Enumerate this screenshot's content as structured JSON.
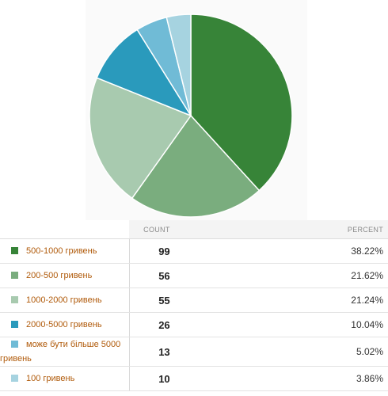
{
  "table": {
    "count_header": "COUNT",
    "percent_header": "PERCENT"
  },
  "chart_data": {
    "type": "pie",
    "categories": [
      "500-1000 гривень",
      "200-500 гривень",
      "1000-2000 гривень",
      "2000-5000 гривень",
      "може бути більше 5000 гривень",
      "100 гривень"
    ],
    "values": [
      99,
      56,
      55,
      26,
      13,
      10
    ],
    "percents": [
      "38.22%",
      "21.62%",
      "21.24%",
      "10.04%",
      "5.02%",
      "3.86%"
    ],
    "colors": [
      "#378438",
      "#7aad7e",
      "#a8caaf",
      "#2a9abc",
      "#70bbd6",
      "#a6d3e0"
    ]
  }
}
